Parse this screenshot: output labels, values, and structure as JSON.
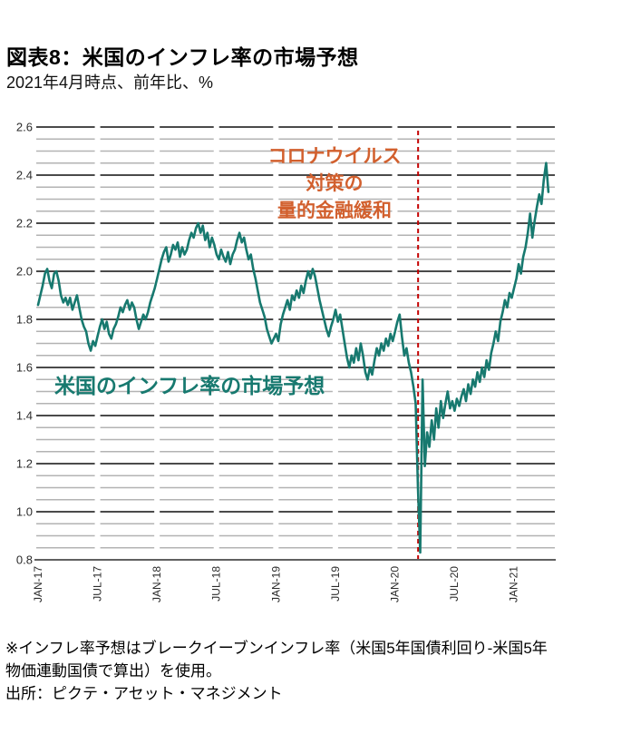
{
  "header": {
    "title": "図表8：米国のインフレ率の市場予想",
    "subtitle": "2021年4月時点、前年比、%"
  },
  "series_label": "米国のインフレ率の市場予想",
  "annotation": {
    "lines": [
      "コロナウイルス",
      "対策の",
      "量的金融緩和"
    ]
  },
  "footnote": {
    "lines": [
      "※インフレ率予想はブレークイーブンインフレ率（米国5年国債利回り-米国5年",
      "物価連動国債で算出）を使用。",
      "出所：ピクテ・アセット・マネジメント"
    ]
  },
  "colors": {
    "line": "#17796f",
    "annotation_orange": "#d2602e",
    "event_line_red": "#c40000",
    "grid_major": "#4a4a4a",
    "grid_minor": "#b3b3b3",
    "axis": "#4a4a4a",
    "tick_label": "#2b2b2b"
  },
  "chart_data": {
    "type": "line",
    "title": "図表8：米国のインフレ率の市場予想",
    "subtitle": "2021年4月時点、前年比、%",
    "xlabel": "",
    "ylabel": "",
    "ylim": [
      0.8,
      2.6
    ],
    "y_major_step": 0.2,
    "y_minor_step": 0.05,
    "grid": "horizontal-segmented",
    "legend_position": "in-plot-text",
    "y_ticks": [
      "2.6",
      "2.4",
      "2.2",
      "2.0",
      "1.8",
      "1.6",
      "1.4",
      "1.2",
      "1.0",
      "0.8"
    ],
    "x_ticks": [
      {
        "label": "JAN-17",
        "month": 0
      },
      {
        "label": "JUL-17",
        "month": 6
      },
      {
        "label": "JAN-18",
        "month": 12
      },
      {
        "label": "JUL-18",
        "month": 18
      },
      {
        "label": "JAN-19",
        "month": 24
      },
      {
        "label": "JUL-19",
        "month": 30
      },
      {
        "label": "JAN-20",
        "month": 36
      },
      {
        "label": "JUL-20",
        "month": 42
      },
      {
        "label": "JAN-21",
        "month": 48
      }
    ],
    "event_line": {
      "month": 38.35,
      "date": "2020-03",
      "style": "dashed",
      "label": "コロナウイルス 対策の 量的金融緩和"
    },
    "series": [
      {
        "name": "米国のインフレ率の市場予想",
        "freq": "weekly",
        "x_start": "2017-01-01",
        "x_end": "2021-04-16",
        "end_month": 51.5,
        "values": [
          1.86,
          1.9,
          1.94,
          1.99,
          2.01,
          1.96,
          1.93,
          1.99,
          2.0,
          1.96,
          1.9,
          1.87,
          1.89,
          1.86,
          1.89,
          1.84,
          1.87,
          1.9,
          1.85,
          1.8,
          1.77,
          1.75,
          1.7,
          1.67,
          1.71,
          1.69,
          1.73,
          1.77,
          1.8,
          1.76,
          1.79,
          1.74,
          1.72,
          1.76,
          1.78,
          1.81,
          1.85,
          1.83,
          1.86,
          1.88,
          1.84,
          1.87,
          1.85,
          1.8,
          1.76,
          1.79,
          1.82,
          1.8,
          1.83,
          1.87,
          1.9,
          1.93,
          1.97,
          2.01,
          2.05,
          2.08,
          2.1,
          2.04,
          2.07,
          2.11,
          2.09,
          2.12,
          2.06,
          2.1,
          2.07,
          2.09,
          2.13,
          2.16,
          2.14,
          2.18,
          2.2,
          2.16,
          2.19,
          2.13,
          2.16,
          2.1,
          2.14,
          2.11,
          2.07,
          2.05,
          2.09,
          2.06,
          2.04,
          2.08,
          2.03,
          2.07,
          2.09,
          2.13,
          2.16,
          2.12,
          2.14,
          2.09,
          2.05,
          2.07,
          2.01,
          1.97,
          1.92,
          1.87,
          1.84,
          1.81,
          1.76,
          1.73,
          1.7,
          1.72,
          1.74,
          1.71,
          1.78,
          1.82,
          1.85,
          1.88,
          1.84,
          1.9,
          1.88,
          1.92,
          1.89,
          1.94,
          1.91,
          1.96,
          2.0,
          1.97,
          2.01,
          1.98,
          1.93,
          1.88,
          1.84,
          1.8,
          1.76,
          1.73,
          1.77,
          1.8,
          1.84,
          1.79,
          1.82,
          1.76,
          1.7,
          1.64,
          1.6,
          1.65,
          1.62,
          1.68,
          1.63,
          1.7,
          1.65,
          1.58,
          1.55,
          1.6,
          1.57,
          1.63,
          1.68,
          1.65,
          1.7,
          1.67,
          1.72,
          1.69,
          1.74,
          1.71,
          1.75,
          1.79,
          1.82,
          1.73,
          1.65,
          1.68,
          1.62,
          1.58,
          1.52,
          1.45,
          1.1,
          0.83,
          1.55,
          1.19,
          1.33,
          1.27,
          1.38,
          1.3,
          1.43,
          1.35,
          1.46,
          1.39,
          1.45,
          1.5,
          1.43,
          1.46,
          1.42,
          1.47,
          1.44,
          1.48,
          1.51,
          1.46,
          1.53,
          1.49,
          1.55,
          1.52,
          1.58,
          1.54,
          1.6,
          1.56,
          1.63,
          1.59,
          1.66,
          1.7,
          1.75,
          1.71,
          1.79,
          1.83,
          1.88,
          1.85,
          1.91,
          1.89,
          1.93,
          1.97,
          2.03,
          1.99,
          2.06,
          2.1,
          2.16,
          2.24,
          2.14,
          2.21,
          2.27,
          2.32,
          2.28,
          2.38,
          2.45,
          2.33
        ]
      }
    ]
  }
}
